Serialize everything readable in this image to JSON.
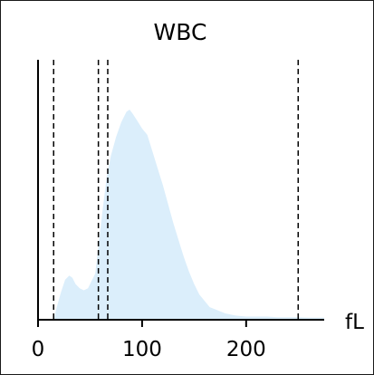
{
  "chart_data": {
    "type": "area",
    "title": "WBC",
    "xlabel": "fL",
    "ylabel": "",
    "xlim": [
      0,
      275
    ],
    "ylim": [
      0,
      1
    ],
    "grid": false,
    "x_ticks": [
      0,
      100,
      200
    ],
    "x_tick_labels": [
      "0",
      "100",
      "200"
    ],
    "threshold_lines": [
      15,
      58,
      67,
      250
    ],
    "series": [
      {
        "x": [
          15,
          18,
          22,
          26,
          30,
          33,
          36,
          40,
          44,
          48,
          51,
          55,
          58,
          62,
          66,
          70,
          75,
          80,
          85,
          88,
          91,
          95,
          100,
          105,
          110,
          115,
          120,
          125,
          130,
          135,
          140,
          145,
          150,
          155,
          160,
          165,
          170,
          180,
          190,
          200,
          210,
          220,
          230,
          240,
          250,
          260,
          275
        ],
        "values": [
          0.0,
          0.06,
          0.13,
          0.19,
          0.21,
          0.2,
          0.17,
          0.15,
          0.14,
          0.15,
          0.18,
          0.22,
          0.35,
          0.52,
          0.68,
          0.78,
          0.87,
          0.94,
          0.99,
          1.0,
          0.98,
          0.95,
          0.91,
          0.88,
          0.8,
          0.72,
          0.64,
          0.55,
          0.46,
          0.38,
          0.3,
          0.23,
          0.17,
          0.12,
          0.09,
          0.06,
          0.05,
          0.03,
          0.02,
          0.015,
          0.015,
          0.015,
          0.012,
          0.012,
          0.012,
          0.01,
          0.01
        ]
      }
    ],
    "colors": {
      "fill": "#dbeefb",
      "axis": "#000000",
      "threshold": "#000000"
    }
  }
}
